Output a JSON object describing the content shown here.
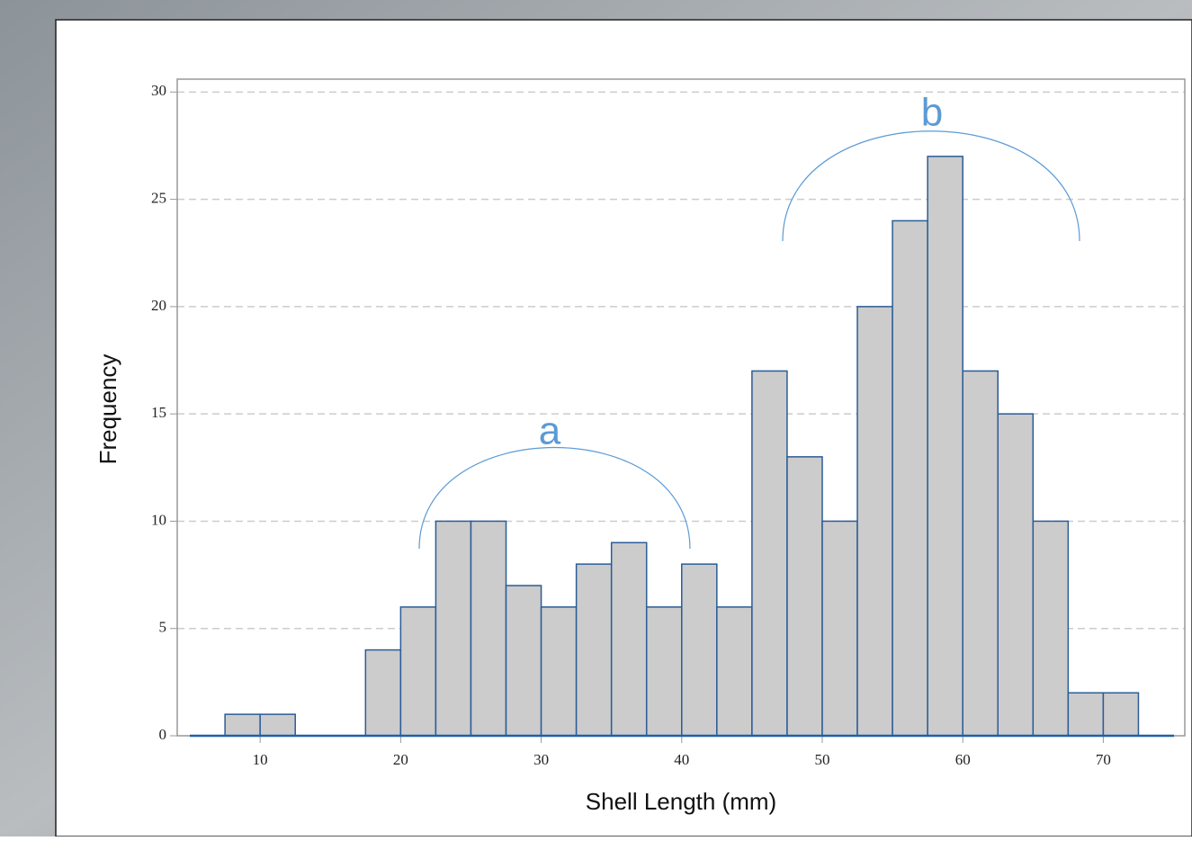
{
  "chart_data": {
    "type": "histogram",
    "x_label": "Shell Length (mm)",
    "y_label": "Frequency",
    "bins": [
      7.5,
      10,
      12.5,
      15,
      17.5,
      20,
      22.5,
      25,
      27.5,
      30,
      32.5,
      35,
      37.5,
      40,
      42.5,
      45,
      47.5,
      50,
      52.5,
      55,
      57.5,
      60,
      62.5,
      65,
      67.5,
      70,
      72.5
    ],
    "values": [
      1,
      1,
      0,
      0,
      4,
      6,
      10,
      10,
      7,
      6,
      8,
      9,
      6,
      8,
      6,
      17,
      13,
      10,
      20,
      24,
      27,
      17,
      15,
      10,
      2,
      2
    ],
    "color": "#cccccc",
    "edge_color": "#2b5c97",
    "xlim": [
      4.1,
      75.8
    ],
    "xticks": [
      10,
      20,
      30,
      40,
      50,
      60,
      70
    ],
    "ylim": [
      0,
      30.6
    ],
    "yticks": [
      0,
      5,
      10,
      15,
      20,
      25,
      30
    ],
    "grid": true,
    "annotations": [
      {
        "text": "a"
      },
      {
        "text": "b"
      }
    ]
  }
}
